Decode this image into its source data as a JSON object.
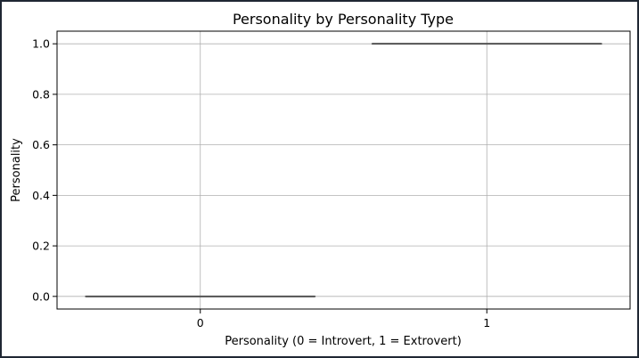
{
  "chart_data": {
    "type": "box",
    "title": "Personality by Personality Type",
    "xlabel": "Personality (0 = Introvert, 1 = Extrovert)",
    "ylabel": "Personality",
    "categories": [
      "0",
      "1"
    ],
    "boxes": [
      {
        "category": "0",
        "min": 0.0,
        "q1": 0.0,
        "median": 0.0,
        "q3": 0.0,
        "max": 0.0
      },
      {
        "category": "1",
        "min": 1.0,
        "q1": 1.0,
        "median": 1.0,
        "q3": 1.0,
        "max": 1.0
      }
    ],
    "ylim": [
      -0.05,
      1.05
    ],
    "yticks": [
      "0.0",
      "0.2",
      "0.4",
      "0.6",
      "0.8",
      "1.0"
    ],
    "grid": true,
    "colors": {
      "box_line": "#555555",
      "grid": "#b0b0b0",
      "axes": "#000000"
    }
  }
}
